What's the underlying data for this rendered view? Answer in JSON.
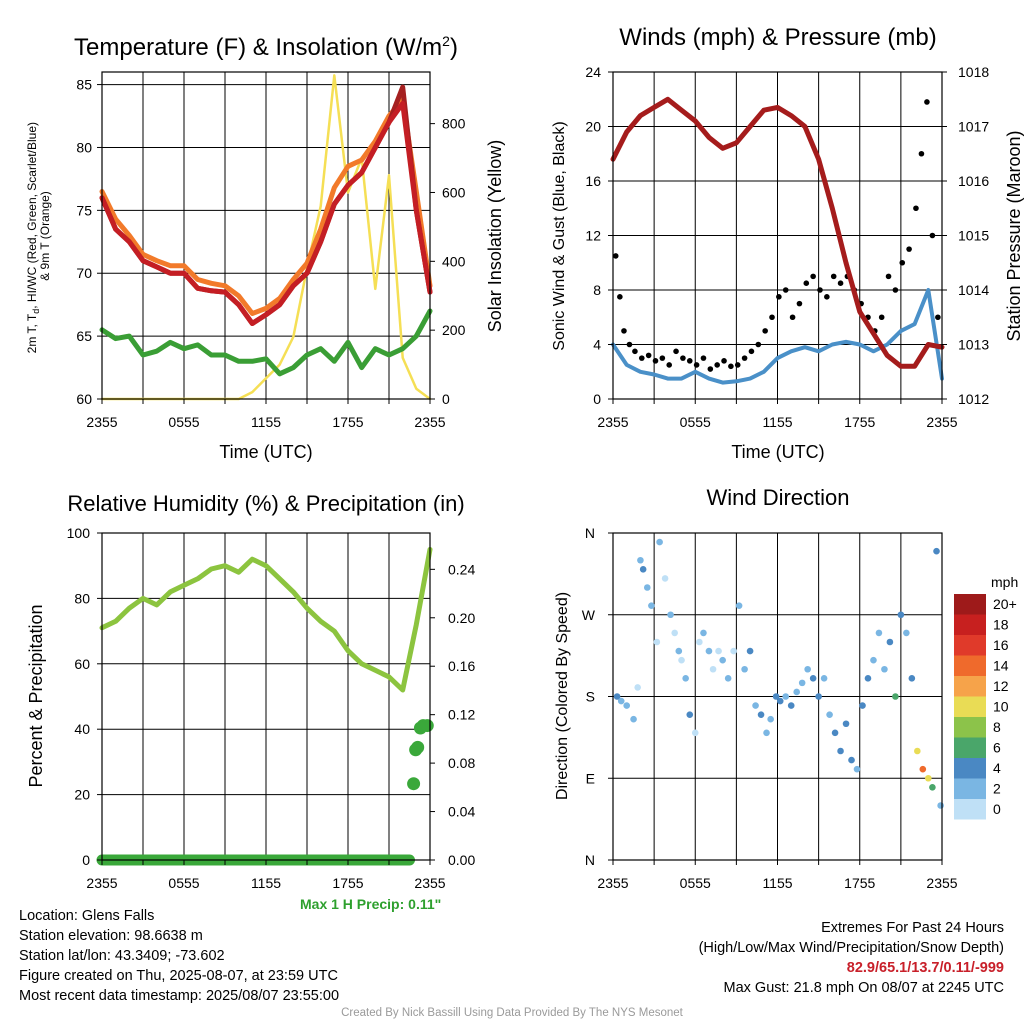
{
  "colors": {
    "temp_red": "#c41e24",
    "dew_green": "#3a9e35",
    "hiwc_scarlet": "#a52020",
    "temp9m_orange": "#f27a2a",
    "solar_yellow": "#f5df55",
    "wind_blue": "#4a90c8",
    "gust_black": "#000000",
    "pressure_maroon": "#a51c1c",
    "rh_green": "#8cc43f",
    "precip_green": "#3aa83a",
    "precip_text_green": "#2ea02e",
    "extremes_red": "#c8202a",
    "credit_gray": "#9a9a9a"
  },
  "chart_data": [
    {
      "type": "line",
      "title": "Temperature (F) & Insolation (W/m²)",
      "xlabel": "Time (UTC)",
      "ylabel_left": "2m T, Tₐ, HI/WC (Red, Green, Scarlet/Blue) & 9m T (Orange)",
      "ylabel_right": "Solar Insolation (Yellow)",
      "x_ticks": [
        "2355",
        "0555",
        "1155",
        "1755",
        "2355"
      ],
      "ylim_left": [
        60,
        86
      ],
      "yticks_left": [
        60,
        65,
        70,
        75,
        80,
        85
      ],
      "ylim_right": [
        0,
        950
      ],
      "yticks_right": [
        0,
        200,
        400,
        600,
        800
      ],
      "grid": true,
      "x_hours": [
        0,
        1,
        2,
        3,
        4,
        5,
        6,
        7,
        8,
        9,
        10,
        11,
        12,
        13,
        14,
        15,
        16,
        17,
        18,
        19,
        20,
        21,
        22,
        23,
        24
      ],
      "series": [
        {
          "name": "2m T",
          "color": "#c41e24",
          "axis": "left",
          "values": [
            76,
            73.5,
            72.5,
            71,
            70.5,
            70,
            70,
            68.8,
            68.6,
            68.5,
            67.5,
            66,
            66.7,
            67.5,
            69,
            70,
            72.5,
            75.5,
            77,
            78,
            80,
            82,
            83.5,
            75,
            68.5
          ]
        },
        {
          "name": "9m T",
          "color": "#f27a2a",
          "axis": "left",
          "values": [
            76.5,
            74.3,
            73,
            71.5,
            71,
            70.6,
            70.6,
            69.5,
            69.2,
            69,
            68.2,
            66.8,
            67.2,
            68,
            69.5,
            70.8,
            73.5,
            76.8,
            78.5,
            79,
            80.5,
            82.5,
            83.8,
            76.5,
            69
          ]
        },
        {
          "name": "HI/WC",
          "color": "#a52020",
          "axis": "left",
          "values": [
            76,
            73.5,
            72.5,
            71,
            70.5,
            70,
            70,
            68.8,
            68.6,
            68.5,
            67.5,
            66,
            66.7,
            67.5,
            69,
            70,
            72.5,
            75.5,
            77,
            78,
            80,
            82,
            84.8,
            75,
            68.5
          ]
        },
        {
          "name": "Dew point",
          "color": "#3a9e35",
          "axis": "left",
          "values": [
            65.5,
            64.8,
            65,
            63.5,
            63.8,
            64.5,
            64,
            64.3,
            63.5,
            63.5,
            63,
            63,
            63.2,
            62,
            62.5,
            63.5,
            64,
            63,
            64.5,
            62.5,
            64,
            63.5,
            64,
            65,
            67
          ]
        },
        {
          "name": "Solar insolation",
          "color": "#f5df55",
          "axis": "right",
          "values": [
            0,
            0,
            0,
            0,
            0,
            0,
            0,
            0,
            0,
            0,
            0,
            20,
            60,
            100,
            180,
            380,
            560,
            940,
            600,
            700,
            320,
            650,
            120,
            30,
            0
          ]
        }
      ]
    },
    {
      "type": "line",
      "title": "Winds (mph) & Pressure (mb)",
      "xlabel": "Time (UTC)",
      "ylabel_left": "Sonic Wind & Gust (Blue, Black)",
      "ylabel_right": "Station Pressure (Maroon)",
      "x_ticks": [
        "2355",
        "0555",
        "1155",
        "1755",
        "2355"
      ],
      "ylim_left": [
        0,
        24
      ],
      "yticks_left": [
        0,
        4,
        8,
        12,
        16,
        20,
        24
      ],
      "ylim_right": [
        1012,
        1018
      ],
      "yticks_right": [
        1012,
        1013,
        1014,
        1015,
        1016,
        1017,
        1018
      ],
      "grid": true,
      "x_hours": [
        0,
        1,
        2,
        3,
        4,
        5,
        6,
        7,
        8,
        9,
        10,
        11,
        12,
        13,
        14,
        15,
        16,
        17,
        18,
        19,
        20,
        21,
        22,
        23,
        24
      ],
      "series": [
        {
          "name": "Sonic wind",
          "color": "#4a90c8",
          "axis": "left",
          "values": [
            4,
            2.5,
            2,
            1.8,
            1.5,
            1.5,
            2,
            1.5,
            1.2,
            1.3,
            1.5,
            2,
            3,
            3.5,
            3.8,
            3.5,
            4,
            4.2,
            4,
            3.5,
            4,
            5,
            5.5,
            8,
            1.5
          ]
        },
        {
          "name": "Pressure",
          "color": "#a51c1c",
          "axis": "right",
          "values": [
            1016.4,
            1016.9,
            1017.2,
            1017.35,
            1017.5,
            1017.3,
            1017.1,
            1016.8,
            1016.6,
            1016.7,
            1017,
            1017.3,
            1017.35,
            1017.2,
            1017,
            1016.4,
            1015.5,
            1014.5,
            1013.6,
            1013.2,
            1012.8,
            1012.6,
            1012.6,
            1013,
            1012.95
          ]
        }
      ],
      "gust_points": {
        "hours": [
          0.2,
          0.5,
          0.8,
          1.2,
          1.6,
          2.1,
          2.6,
          3.1,
          3.6,
          4.1,
          4.6,
          5.1,
          5.6,
          6.1,
          6.6,
          7.1,
          7.6,
          8.1,
          8.6,
          9.1,
          9.6,
          10.1,
          10.6,
          11.1,
          11.6,
          12.1,
          12.6,
          13.1,
          13.6,
          14.1,
          14.6,
          15.1,
          15.6,
          16.1,
          16.6,
          17.1,
          17.6,
          18.1,
          18.6,
          19.1,
          19.6,
          20.1,
          20.6,
          21.1,
          21.6,
          22.1,
          22.5,
          22.9,
          23.3,
          23.7
        ],
        "values": [
          10.5,
          7.5,
          5,
          4,
          3.5,
          3,
          3.2,
          2.8,
          3,
          2.5,
          3.5,
          3,
          2.8,
          2.5,
          3,
          2.2,
          2.5,
          2.8,
          2.4,
          2.5,
          3,
          3.5,
          4,
          5,
          6,
          7.5,
          8,
          6,
          7,
          8.5,
          9,
          8,
          7.5,
          9,
          8.5,
          9,
          8,
          7,
          6,
          5,
          6,
          9,
          8,
          10,
          11,
          14,
          18,
          21.8,
          12,
          6
        ]
      }
    },
    {
      "type": "line",
      "title": "Relative Humidity (%) & Precipitation (in)",
      "ylabel_left": "Percent & Precipitation",
      "x_ticks": [
        "2355",
        "0555",
        "1155",
        "1755",
        "2355"
      ],
      "ylim_left": [
        0,
        100
      ],
      "yticks_left": [
        0,
        20,
        40,
        60,
        80,
        100
      ],
      "ylim_right": [
        0,
        0.27
      ],
      "yticks_right": [
        "0.00",
        "0.04",
        "0.08",
        "0.12",
        "0.16",
        "0.20",
        "0.24"
      ],
      "grid": true,
      "x_hours": [
        0,
        1,
        2,
        3,
        4,
        5,
        6,
        7,
        8,
        9,
        10,
        11,
        12,
        13,
        14,
        15,
        16,
        17,
        18,
        19,
        20,
        21,
        22,
        23,
        24
      ],
      "series": [
        {
          "name": "Relative humidity",
          "color": "#8cc43f",
          "axis": "left",
          "values": [
            71,
            73,
            77,
            80,
            78,
            82,
            84,
            86,
            89,
            90,
            88,
            92,
            90,
            86,
            82,
            77,
            73,
            70,
            64,
            60,
            58,
            56,
            52,
            72,
            95
          ]
        },
        {
          "name": "Precipitation",
          "color": "#3aa83a",
          "axis": "right",
          "values": [
            0,
            0,
            0,
            0,
            0,
            0,
            0,
            0,
            0,
            0,
            0,
            0,
            0,
            0,
            0,
            0,
            0,
            0,
            0,
            0,
            0,
            0,
            0,
            0.11,
            0.11
          ]
        }
      ],
      "precip_points": {
        "hours": [
          22.8,
          22.95,
          23.1,
          23.3,
          23.5,
          23.8
        ],
        "values": [
          0.063,
          0.091,
          0.093,
          0.109,
          0.111,
          0.111
        ]
      },
      "max_precip_label": "Max 1 H Precip: 0.11\""
    },
    {
      "type": "scatter",
      "title": "Wind Direction",
      "ylabel_left": "Direction (Colored By Speed)",
      "x_ticks": [
        "2355",
        "0555",
        "1155",
        "1755",
        "2355"
      ],
      "y_ticks": [
        "N",
        "E",
        "S",
        "W",
        "N"
      ],
      "ylim": [
        0,
        360
      ],
      "grid": true,
      "colorbar": {
        "title": "mph",
        "labels": [
          "20+",
          "18",
          "16",
          "14",
          "12",
          "10",
          "8",
          "6",
          "4",
          "2",
          "0"
        ],
        "colors": [
          "#9e1a1a",
          "#c7201f",
          "#e03a2a",
          "#ef6a2c",
          "#f6a34a",
          "#e9dc55",
          "#8cc34a",
          "#4aa66a",
          "#4a88c3",
          "#7ab6e3",
          "#bfe0f6"
        ]
      },
      "points": {
        "hours": [
          0.3,
          0.6,
          1,
          1.5,
          1.8,
          2,
          2.2,
          2.5,
          2.8,
          3.2,
          3.4,
          3.8,
          4.2,
          4.5,
          4.8,
          5,
          5.3,
          5.6,
          6,
          6.3,
          6.6,
          7,
          7.3,
          7.7,
          8,
          8.4,
          8.8,
          9.2,
          9.6,
          10,
          10.4,
          10.8,
          11.2,
          11.5,
          11.9,
          12.2,
          12.6,
          13,
          13.4,
          13.8,
          14.2,
          14.6,
          15,
          15.4,
          15.8,
          16.2,
          16.6,
          17,
          17.4,
          17.8,
          18.2,
          18.6,
          19,
          19.4,
          19.8,
          20.2,
          20.6,
          21,
          21.4,
          21.8,
          22.2,
          22.6,
          23,
          23.3,
          23.6,
          23.9
        ],
        "degrees": [
          180,
          175,
          170,
          155,
          190,
          330,
          320,
          300,
          280,
          240,
          350,
          310,
          270,
          250,
          230,
          220,
          200,
          160,
          140,
          240,
          250,
          230,
          210,
          230,
          220,
          200,
          230,
          280,
          210,
          230,
          170,
          160,
          140,
          155,
          180,
          175,
          180,
          170,
          185,
          195,
          210,
          200,
          180,
          200,
          160,
          140,
          120,
          150,
          110,
          100,
          170,
          200,
          220,
          250,
          210,
          240,
          180,
          270,
          250,
          200,
          120,
          100,
          90,
          80,
          340,
          60
        ],
        "speeds": [
          4,
          3,
          2,
          3,
          1,
          3,
          4,
          2,
          2,
          1,
          3,
          1,
          2,
          1,
          2,
          1,
          3,
          4,
          1,
          1,
          2,
          2,
          1,
          1,
          2,
          3,
          1,
          3,
          2,
          4,
          2,
          4,
          3,
          2,
          4,
          4,
          3,
          4,
          3,
          2,
          2,
          4,
          4,
          2,
          3,
          4,
          4,
          5,
          4,
          3,
          4,
          4,
          3,
          2,
          2,
          5,
          6,
          4,
          3,
          5,
          11,
          14,
          10,
          6,
          4,
          3
        ]
      }
    }
  ],
  "info": {
    "location": "Location: Glens Falls",
    "elevation": "Station elevation: 98.6638 m",
    "latlon": "Station lat/lon: 43.3409; -73.602",
    "created": "Figure created on Thu, 2025-08-07, at 23:59 UTC",
    "recent": "Most recent data timestamp: 2025/08/07 23:55:00"
  },
  "extremes": {
    "heading": "Extremes For Past 24 Hours",
    "subheading": "(High/Low/Max Wind/Precipitation/Snow Depth)",
    "values": "82.9/65.1/13.7/0.11/-999",
    "max_gust": "Max Gust: 21.8 mph On 08/07 at 2245 UTC"
  },
  "credit": "Created By Nick Bassill Using Data Provided By The NYS Mesonet"
}
